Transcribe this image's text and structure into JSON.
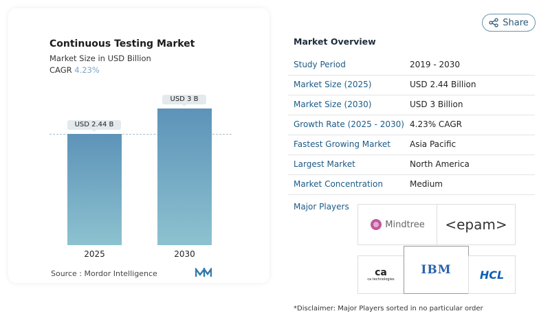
{
  "share_label": "Share",
  "chart_data": {
    "type": "bar",
    "title": "Continuous Testing Market",
    "subtitle": "Market Size in USD Billion",
    "cagr_label": "CAGR",
    "cagr_value": "4.23%",
    "categories": [
      "2025",
      "2030"
    ],
    "values": [
      2.44,
      3
    ],
    "data_labels": [
      "USD 2.44 B",
      "USD 3 B"
    ],
    "ylim": [
      0,
      3
    ],
    "grid": false,
    "bar_color": "#6a9fc0",
    "source": "Source :  Mordor Intelligence"
  },
  "overview": {
    "title": "Market Overview",
    "rows": [
      {
        "key": "Study Period",
        "value": "2019 - 2030"
      },
      {
        "key": "Market Size (2025)",
        "value": "USD 2.44 Billion"
      },
      {
        "key": "Market Size (2030)",
        "value": "USD 3 Billion"
      },
      {
        "key": "Growth Rate (2025 - 2030)",
        "value": "4.23% CAGR"
      },
      {
        "key": "Fastest Growing Market",
        "value": "Asia Pacific"
      },
      {
        "key": "Largest Market",
        "value": "North America"
      },
      {
        "key": "Market Concentration",
        "value": "Medium"
      }
    ]
  },
  "players": {
    "title": "Major Players",
    "logos": [
      "Mindtree",
      "<epam>",
      "ca technologies",
      "IBM",
      "HCL"
    ]
  },
  "disclaimer": "*Disclaimer: Major Players sorted in no particular order"
}
